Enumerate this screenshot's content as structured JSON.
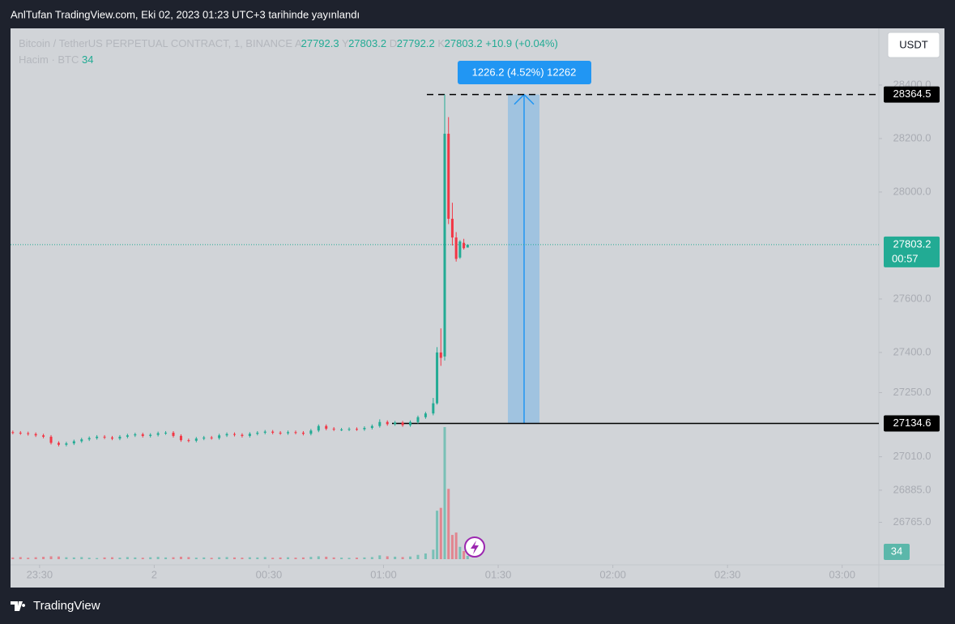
{
  "header": {
    "title": "AnlTufan TradingView.com, Eki 02, 2023 01:23 UTC+3 tarihinde yayınlandı"
  },
  "footer": {
    "logo": "TradingView"
  },
  "chart_data": {
    "type": "candlestick",
    "title": "Bitcoin / TetherUS PERPETUAL CONTRACT, 1, BINANCE",
    "legend_labels": [
      "A",
      "Y",
      "D",
      "K"
    ],
    "change": "+10.9 (+0.04%)",
    "volume_title": "Hacim · BTC",
    "currency": "USDT",
    "countdown": "00:57",
    "up_color": "#22ab94",
    "down_color": "#f23645",
    "x": [
      -37,
      -35,
      -33,
      -31,
      -29,
      -27,
      -25,
      -23,
      -21,
      -19,
      -17,
      -15,
      -13,
      -11,
      -9,
      -7,
      -5,
      -3,
      -1,
      1,
      3,
      5,
      7,
      9,
      11,
      13,
      15,
      17,
      19,
      21,
      23,
      25,
      27,
      29,
      31,
      33,
      35,
      37,
      39,
      41,
      43,
      45,
      47,
      49,
      51,
      53,
      55,
      57,
      59,
      61,
      63,
      65,
      67,
      69,
      71,
      73,
      74,
      75,
      76,
      77,
      78,
      79,
      80,
      81,
      82
    ],
    "open": [
      27102,
      27100,
      27098,
      27095,
      27090,
      27085,
      27062,
      27055,
      27060,
      27068,
      27075,
      27080,
      27085,
      27082,
      27078,
      27085,
      27090,
      27094,
      27088,
      27092,
      27098,
      27100,
      27088,
      27072,
      27070,
      27078,
      27082,
      27080,
      27090,
      27095,
      27092,
      27088,
      27096,
      27100,
      27104,
      27100,
      27098,
      27102,
      27100,
      27096,
      27108,
      27125,
      27115,
      27112,
      27112,
      27114,
      27113,
      27118,
      27125,
      27140,
      27132,
      27138,
      27128,
      27140,
      27158,
      27172,
      27210,
      27400,
      27385,
      28218,
      27900,
      27830,
      27755,
      27810,
      27792.3
    ],
    "high": [
      27108,
      27106,
      27104,
      27101,
      27096,
      27091,
      27068,
      27066,
      27074,
      27081,
      27086,
      27091,
      27091,
      27088,
      27091,
      27096,
      27100,
      27100,
      27098,
      27104,
      27106,
      27106,
      27094,
      27078,
      27084,
      27088,
      27088,
      27096,
      27101,
      27101,
      27098,
      27102,
      27106,
      27110,
      27110,
      27106,
      27108,
      27108,
      27106,
      27114,
      27131,
      27131,
      27121,
      27118,
      27120,
      27120,
      27124,
      27131,
      27150,
      27146,
      27144,
      27144,
      27146,
      27164,
      27178,
      27230,
      27420,
      27490,
      28364.5,
      28280,
      27960,
      27850,
      27820,
      27825,
      27803.2
    ],
    "low": [
      27094,
      27092,
      27089,
      27084,
      27079,
      27056,
      27049,
      27049,
      27054,
      27062,
      27069,
      27074,
      27076,
      27072,
      27072,
      27079,
      27084,
      27082,
      27082,
      27086,
      27092,
      27082,
      27066,
      27064,
      27064,
      27072,
      27074,
      27074,
      27084,
      27086,
      27082,
      27082,
      27090,
      27094,
      27094,
      27092,
      27092,
      27094,
      27090,
      27090,
      27102,
      27109,
      27106,
      27106,
      27106,
      27107,
      27107,
      27112,
      27119,
      27126,
      27126,
      27122,
      27122,
      27134,
      27152,
      27165,
      27205,
      27350,
      27370,
      27880,
      27800,
      27740,
      27750,
      27785,
      27792.2
    ],
    "close": [
      27100,
      27098,
      27095,
      27090,
      27085,
      27062,
      27055,
      27060,
      27068,
      27075,
      27080,
      27085,
      27082,
      27078,
      27085,
      27090,
      27094,
      27088,
      27092,
      27098,
      27100,
      27088,
      27072,
      27070,
      27078,
      27082,
      27080,
      27090,
      27095,
      27092,
      27088,
      27096,
      27100,
      27104,
      27100,
      27098,
      27102,
      27100,
      27096,
      27108,
      27125,
      27115,
      27112,
      27112,
      27114,
      27113,
      27118,
      27125,
      27140,
      27132,
      27138,
      27128,
      27140,
      27158,
      27172,
      27210,
      27400,
      27380,
      28218,
      27900,
      27830,
      27750,
      27815,
      27790,
      27803.2
    ],
    "volume": [
      18,
      22,
      15,
      20,
      25,
      30,
      28,
      20,
      18,
      22,
      15,
      12,
      18,
      20,
      16,
      22,
      18,
      15,
      20,
      24,
      18,
      20,
      26,
      22,
      16,
      18,
      14,
      20,
      22,
      18,
      16,
      20,
      18,
      22,
      15,
      18,
      20,
      16,
      18,
      24,
      30,
      26,
      18,
      16,
      14,
      16,
      18,
      22,
      40,
      30,
      26,
      22,
      28,
      45,
      60,
      100,
      510,
      540,
      1390,
      740,
      255,
      280,
      130,
      85,
      34
    ],
    "xlim": [
      -37.6,
      189.6
    ],
    "xticks": [
      {
        "value": -30,
        "label": "23:30"
      },
      {
        "value": 0,
        "label": "2"
      },
      {
        "value": 30,
        "label": "00:30"
      },
      {
        "value": 60,
        "label": "01:00"
      },
      {
        "value": 90,
        "label": "01:30"
      },
      {
        "value": 120,
        "label": "02:00"
      },
      {
        "value": 150,
        "label": "02:30"
      },
      {
        "value": 180,
        "label": "03:00"
      }
    ],
    "ylim": [
      26521,
      28612
    ],
    "yticks": [
      {
        "value": 28400,
        "label": "28400.0"
      },
      {
        "value": 28200,
        "label": "28200.0"
      },
      {
        "value": 28000,
        "label": "28000.0"
      },
      {
        "value": 27600,
        "label": "27600.0"
      },
      {
        "value": 27400,
        "label": "27400.0"
      },
      {
        "value": 27250,
        "label": "27250.0"
      },
      {
        "value": 27010,
        "label": "27010.0"
      },
      {
        "value": 26885,
        "label": "26885.0"
      },
      {
        "value": 26765,
        "label": "26765.0"
      }
    ],
    "measure": {
      "low": 27134.6,
      "label": "1226.2 (4.52%) 12262"
    }
  }
}
